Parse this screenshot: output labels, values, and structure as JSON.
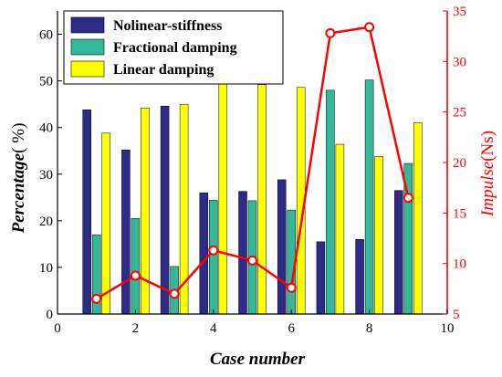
{
  "chart_data": {
    "type": "bar",
    "xlabel": "Case number",
    "ylabel_left": "Percentage",
    "ylabel_left_unit": "( %)",
    "ylabel_right": "Impulse",
    "ylabel_right_unit": "(Ns)",
    "xlim": [
      0,
      10
    ],
    "xticks": [
      "0",
      "2",
      "4",
      "6",
      "8",
      "10"
    ],
    "ylim_left": [
      0,
      65
    ],
    "yticks_left": [
      "0",
      "10",
      "20",
      "30",
      "40",
      "50",
      "60"
    ],
    "ylim_right": [
      5,
      35
    ],
    "yticks_right": [
      "5",
      "10",
      "15",
      "20",
      "25",
      "30",
      "35"
    ],
    "categories": [
      1,
      2,
      3,
      4,
      5,
      6,
      7,
      8,
      9
    ],
    "legend_position": "top-left",
    "series": [
      {
        "name": "Nolinear-stiffness",
        "color": "#2e2b87",
        "axis": "left",
        "values": [
          43.8,
          35.2,
          44.6,
          26.0,
          26.3,
          28.8,
          15.5,
          16.0,
          26.5
        ]
      },
      {
        "name": "Fractional damping",
        "color": "#33b89b",
        "axis": "left",
        "values": [
          17.0,
          20.5,
          10.2,
          24.4,
          24.3,
          22.3,
          48.0,
          50.2,
          32.3
        ]
      },
      {
        "name": "Linear damping",
        "color": "#ffff00",
        "axis": "left",
        "values": [
          38.8,
          44.2,
          45.0,
          49.5,
          49.2,
          48.6,
          36.4,
          33.8,
          41.0
        ]
      }
    ],
    "line_series": {
      "color": "#ff0000",
      "axis": "right",
      "values": [
        6.5,
        8.8,
        7.0,
        11.3,
        10.3,
        7.6,
        32.8,
        33.4,
        16.5
      ]
    }
  }
}
